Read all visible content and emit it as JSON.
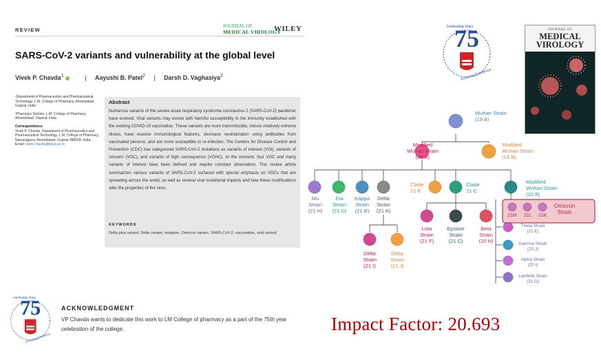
{
  "article": {
    "section_label": "REVIEW",
    "journal_small_line1": "JOURNAL OF",
    "journal_small_line2": "MEDICAL VIROLOGY",
    "publisher": "WILEY",
    "title": "SARS-CoV-2 variants and vulnerability at the global level",
    "authors": [
      {
        "name": "Vivek P. Chavda",
        "sup": "1"
      },
      {
        "name": "Aayushi B. Patel",
        "sup": "2"
      },
      {
        "name": "Darsh D. Vaghasiya",
        "sup": "2"
      }
    ],
    "author_separator": "|",
    "affiliations": [
      "¹Department of Pharmaceutics and Pharmaceutical Technology, L.M. College of Pharmacy, Ahmedabad, Gujarat, India",
      "²Pharmacy Section, L.M. College of Pharmacy, Ahmedabad, Gujarat, India"
    ],
    "correspondence_heading": "Correspondence",
    "correspondence_text": "Vivek P. Chavda, Department of Pharmaceutics and Pharmaceutical Technology, L.M. College of Pharmacy, Navrangpura, Ahmedabad, Gujarat 380009, India.",
    "email_label": "Email:",
    "email": "vivek.chavda@lmcp.ac.in",
    "abstract_heading": "Abstract",
    "abstract_text": "Numerous variants of the severe acute respiratory syndrome coronavirus 2 (SARS-CoV-2) pandemic have evolved. Viral variants may evolve with harmful susceptibility to the immunity established with the existing COVID-19 vaccination. These variants are more transmissible, induce relatively extreme illness, have evasive immunological features, decrease neutralization using antibodies from vaccinated persons, and are more susceptible to re-infection. The Centers for Disease Control and Prevention (CDC) has categorized SARS-CoV-2 mutations as variants of interest (VOI), variants of concern (VOC), and variants of high consequence (VOHC). At the moment, four VOC and many variants of interest have been defined and require constant observation. This review article summarizes various variants of SARS-CoV-2 surfaced with special emphasis on VOCs that are spreading across the world, as well as several viral mutational impacts and how these modifications alter the properties of the virus.",
    "keywords_heading": "KEYWORDS",
    "keywords_text": "Delta plus variant, Delta variant, mutation, Omicron variant, SARS-CoV-2, vaccination, viral variant"
  },
  "logo": {
    "number": "75",
    "ring_text": "Celebrating Years",
    "motto": "Enduring Excellence"
  },
  "cover": {
    "line1": "JOURNAL OF",
    "line2": "MEDICAL",
    "line3": "VIROLOGY"
  },
  "diagram": {
    "wuhan": [
      "Wuhan Strain",
      "(19 A)"
    ],
    "mod20a": [
      "Modified",
      "Wuhan Strain",
      "(20 A)"
    ],
    "mod19b": [
      "Modified",
      "Wuhan Strain",
      "(19 B)"
    ],
    "mu": [
      "Mu",
      "Strain",
      "(21 H)"
    ],
    "eta": [
      "Eta",
      "Strain",
      "(21 D)"
    ],
    "kappa": [
      "Kappa",
      "Strain",
      "(21 B)"
    ],
    "delta21a": [
      "Delta",
      "Strain",
      "(21 A)"
    ],
    "clade21e": [
      "Clade",
      "21 E"
    ],
    "clade21c": [
      "Clade",
      "21 C"
    ],
    "mod20b": [
      "Modified",
      "Wuhan Strain",
      "(20 B)"
    ],
    "delta21i": [
      "Delta",
      "Strain",
      "(21 I)"
    ],
    "delta21j": [
      "Delta",
      "Strain",
      "(21 J)"
    ],
    "lota": [
      "Lota",
      "Strain",
      "(21 F)"
    ],
    "epsilon": [
      "Epsilon",
      "Strain",
      "(21 C)"
    ],
    "beta": [
      "Beta",
      "Strain",
      "(20 H)"
    ],
    "omicron_codes": [
      "21M",
      "21L",
      "21K"
    ],
    "omicron_label": [
      "Omicron",
      "Strain"
    ],
    "side_strains": [
      [
        "Theta Strain",
        "(21 E)"
      ],
      [
        "Gamma Strain",
        "(20 J)"
      ],
      [
        "Alpha Strain",
        "(20 I)"
      ],
      [
        "Lambda Strain",
        "(21 G)"
      ]
    ]
  },
  "acknowledgment": {
    "heading": "ACKNOWLEDGMENT",
    "text": "VP Chavda wants to dedicate this work to LM College of pharmacy as a part of the 75th year celebration of the college."
  },
  "impact_factor": "Impact Factor: 20.693",
  "colors": {
    "impact_red": "#b00000",
    "abstract_bg": "#e7e7e7",
    "cover_bg": "#0f1f1f",
    "logo_blue": "#1f4e9c",
    "logo_red": "#c62828"
  }
}
